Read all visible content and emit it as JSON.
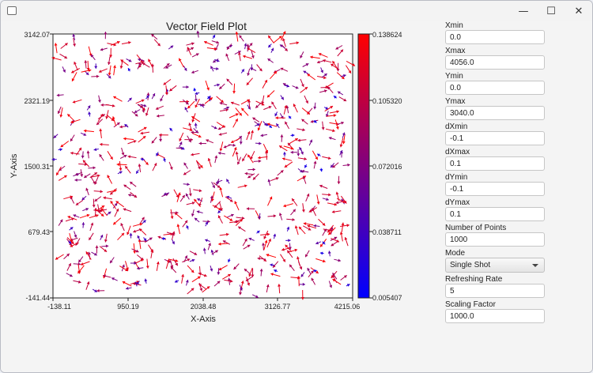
{
  "window": {
    "minimize_glyph": "—",
    "maximize_glyph": "☐",
    "close_glyph": "✕"
  },
  "chart_data": {
    "type": "quiver",
    "title": "Vector Field Plot",
    "xlabel": "X-Axis",
    "ylabel": "Y-Axis",
    "xlim": [
      -138.11,
      4215.06
    ],
    "ylim": [
      -141.44,
      3142.07
    ],
    "x_ticks": [
      "-138.11",
      "950.19",
      "2038.48",
      "3126.77",
      "4215.06"
    ],
    "y_ticks": [
      "3142.07",
      "2321.19",
      "1500.31",
      "679.43",
      "-141.44"
    ],
    "colorbar": {
      "min": 0.005407,
      "max": 0.138624,
      "ticks": [
        "0.138624",
        "0.105320",
        "0.072016",
        "0.038711",
        "0.005407"
      ],
      "low_color": "#0000ff",
      "high_color": "#ff0000"
    },
    "grid": false,
    "num_points": 1000
  },
  "controls": {
    "xmin": {
      "label": "Xmin",
      "value": "0.0"
    },
    "xmax": {
      "label": "Xmax",
      "value": "4056.0"
    },
    "ymin": {
      "label": "Ymin",
      "value": "0.0"
    },
    "ymax": {
      "label": "Ymax",
      "value": "3040.0"
    },
    "dxmin": {
      "label": "dXmin",
      "value": "-0.1"
    },
    "dxmax": {
      "label": "dXmax",
      "value": "0.1"
    },
    "dymin": {
      "label": "dYmin",
      "value": "-0.1"
    },
    "dymax": {
      "label": "dYmax",
      "value": "0.1"
    },
    "num_points": {
      "label": "Number of Points",
      "value": "1000"
    },
    "mode": {
      "label": "Mode",
      "value": "Single Shot"
    },
    "refresh_rate": {
      "label": "Refreshing Rate",
      "value": "5"
    },
    "scaling_factor": {
      "label": "Scaling Factor",
      "value": "1000.0"
    }
  }
}
